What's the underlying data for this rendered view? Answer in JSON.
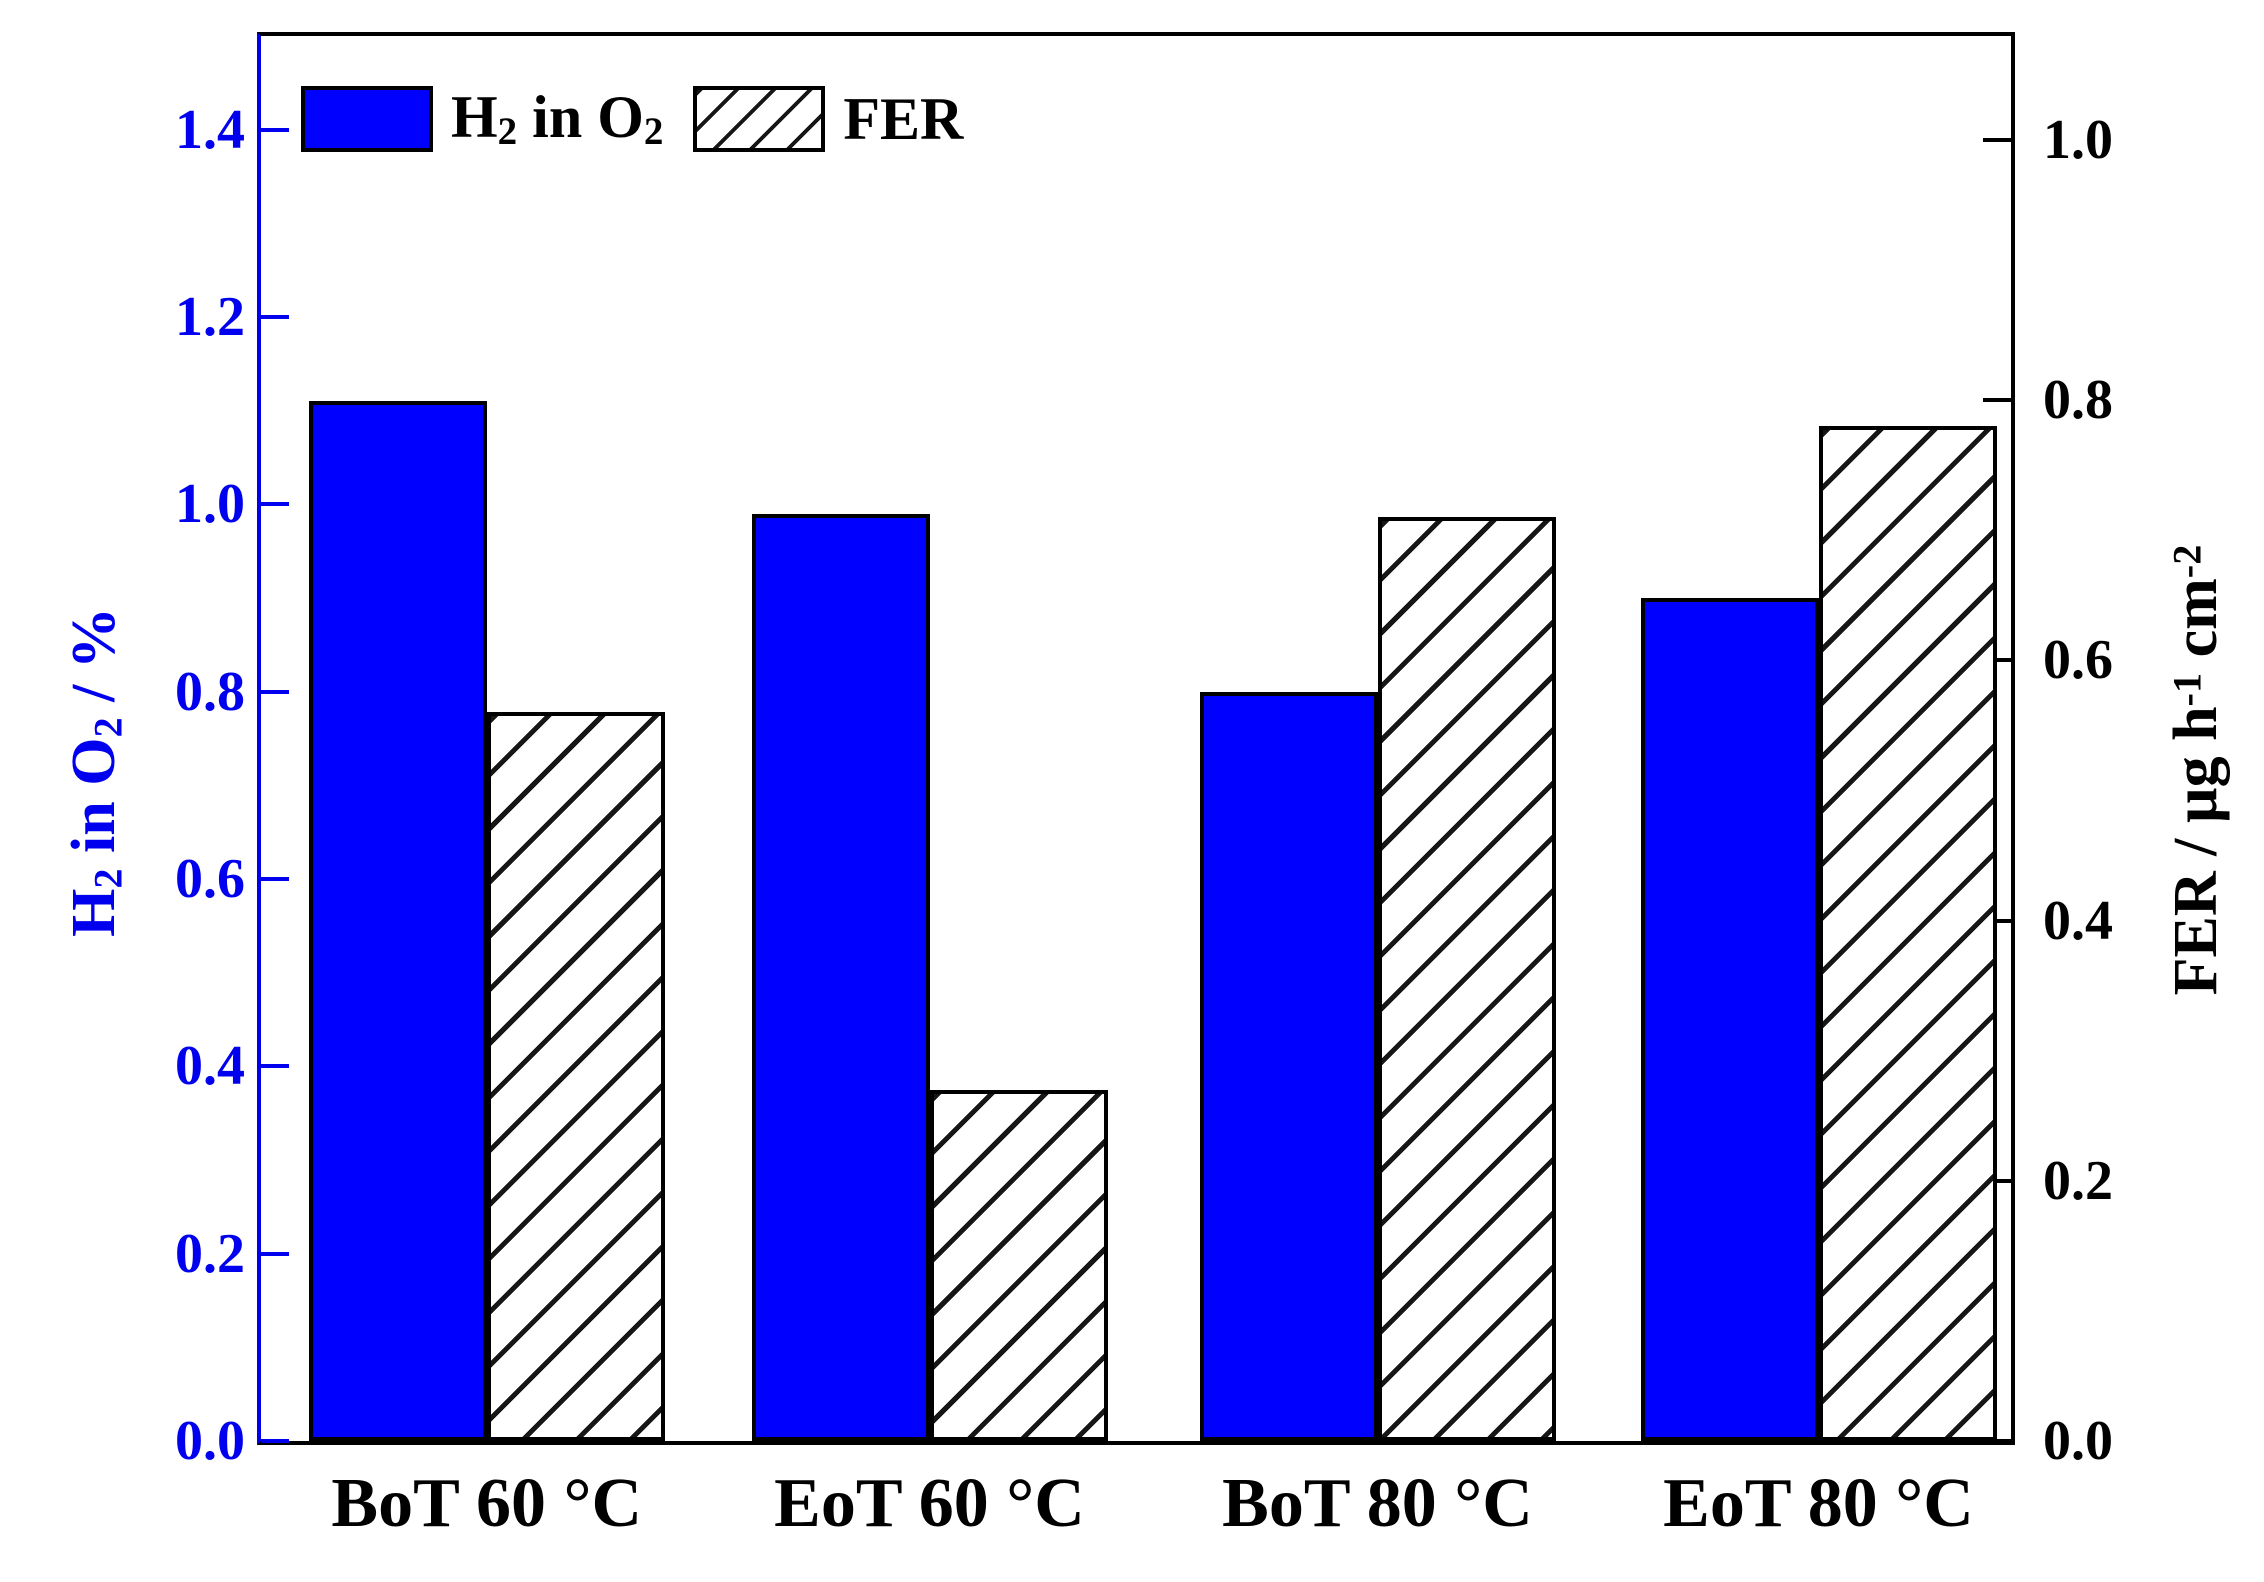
{
  "legend": {
    "items": [
      {
        "key": "h2_in_o2",
        "label": "H~2~ in O~2~",
        "swatch": "solid-blue"
      },
      {
        "key": "fer",
        "label": "FER",
        "swatch": "hatched"
      }
    ]
  },
  "axes": {
    "left": {
      "title": "H~2~ in O~2~ / %",
      "color": "#0000ee",
      "tick_labels": [
        "0.0",
        "0.2",
        "0.4",
        "0.6",
        "0.8",
        "1.0",
        "1.2",
        "1.4"
      ],
      "tick_values": [
        0.0,
        0.2,
        0.4,
        0.6,
        0.8,
        1.0,
        1.2,
        1.4
      ]
    },
    "right": {
      "title": "FER / µg h^-1^ cm^-2^",
      "color": "#000000",
      "tick_labels": [
        "0.0",
        "0.2",
        "0.4",
        "0.6",
        "0.8",
        "1.0"
      ],
      "tick_values": [
        0.0,
        0.2,
        0.4,
        0.6,
        0.8,
        1.0
      ]
    }
  },
  "chart_data": {
    "type": "bar",
    "title": "",
    "categories": [
      "BoT 60 °C",
      "EoT 60 °C",
      "BoT 80 °C",
      "EoT 80 °C"
    ],
    "series": [
      {
        "name": "H2 in O2",
        "axis": "left",
        "unit": "%",
        "style": "solid-blue",
        "color": "#0000ff",
        "values": [
          1.11,
          0.99,
          0.8,
          0.9
        ]
      },
      {
        "name": "FER",
        "axis": "right",
        "unit": "µg h⁻¹ cm⁻²",
        "style": "hatched-black-on-white",
        "color": "#ffffff",
        "values": [
          0.56,
          0.27,
          0.71,
          0.78
        ]
      }
    ],
    "ylabel_left": "H2 in O2 / %",
    "ylabel_right": "FER / µg h⁻¹ cm⁻²",
    "ylim_left": [
      0,
      1.5
    ],
    "ylim_right": [
      0,
      1.08
    ],
    "grid": false,
    "legend_position": "top-left"
  }
}
